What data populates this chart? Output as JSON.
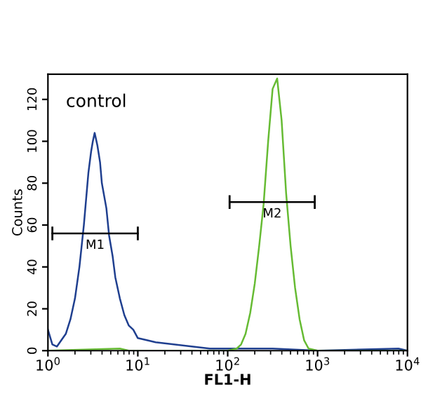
{
  "chart_data": {
    "type": "line",
    "xlabel": "FL1-H",
    "ylabel": "Counts",
    "log": "x",
    "xlim": [
      1,
      10000
    ],
    "xticks": [
      {
        "value": 1,
        "label": "10$^{0}$"
      },
      {
        "value": 10,
        "label": "10$^{1}$"
      },
      {
        "value": 100,
        "label": "10$^{2}$"
      },
      {
        "value": 1000,
        "label": "10$^{3}$"
      },
      {
        "value": 10000,
        "label": "10$^{4}$"
      }
    ],
    "ylim": [
      0,
      132
    ],
    "yticks": [
      0,
      20,
      40,
      60,
      80,
      100,
      120
    ],
    "grid": false,
    "legend": false,
    "annotations": [
      "control"
    ],
    "series": [
      {
        "color": "#1f3f8f",
        "x": [
          1,
          1.12,
          1.26,
          1.41,
          1.58,
          1.78,
          2.0,
          2.24,
          2.51,
          2.82,
          3.02,
          3.16,
          3.31,
          3.55,
          3.8,
          3.98,
          4.47,
          4.79,
          5.25,
          5.62,
          6.31,
          7.08,
          7.94,
          8.91,
          10,
          12.6,
          15.8,
          25.1,
          39.8,
          63.1,
          100,
          316,
          1000,
          7940,
          10000
        ],
        "values": [
          10,
          3,
          2,
          5,
          8,
          15,
          25,
          40,
          60,
          85,
          95,
          100,
          104,
          98,
          90,
          80,
          68,
          55,
          45,
          35,
          25,
          17,
          12,
          10,
          6,
          5,
          4,
          3,
          2,
          1,
          1,
          1,
          0,
          1,
          0
        ]
      },
      {
        "color": "#66bb33",
        "x": [
          1,
          6.31,
          7.94,
          10,
          100,
          126,
          141,
          158,
          178,
          200,
          224,
          251,
          282,
          316,
          355,
          398,
          447,
          501,
          562,
          631,
          708,
          794,
          1000,
          10000
        ],
        "values": [
          0,
          1,
          0,
          0,
          0,
          1,
          3,
          8,
          18,
          32,
          50,
          70,
          100,
          125,
          130,
          110,
          75,
          50,
          30,
          15,
          5,
          1,
          0,
          0
        ]
      },
      {
        "name": "M1",
        "color": "#000000",
        "x": [
          1.12,
          10
        ],
        "values": [
          56,
          56
        ]
      },
      {
        "name": "M2",
        "color": "#000000",
        "x": [
          105,
          930
        ],
        "values": [
          71,
          71
        ]
      }
    ]
  }
}
